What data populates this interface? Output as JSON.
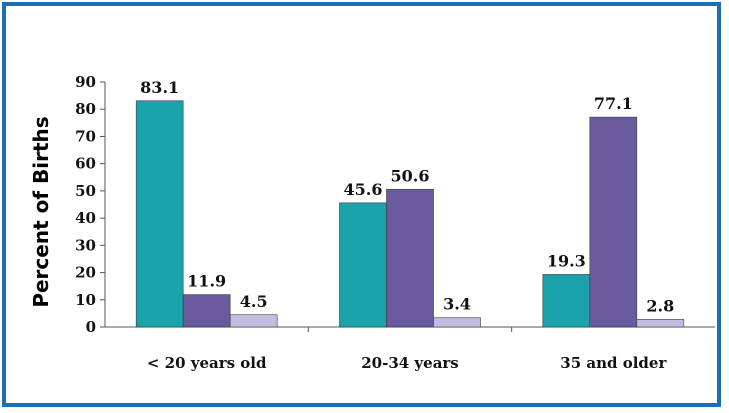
{
  "chart_data": {
    "type": "bar",
    "title": "",
    "xlabel": "",
    "ylabel": "Percent of Births",
    "categories": [
      "< 20 years old",
      "20-34 years",
      "35 and older"
    ],
    "series": [
      {
        "values": [
          83.1,
          45.6,
          19.3
        ],
        "color": "#1aa3aa"
      },
      {
        "values": [
          11.9,
          50.6,
          77.1
        ],
        "color": "#6a5a9e"
      },
      {
        "values": [
          4.5,
          3.4,
          2.8
        ],
        "color": "#c2bde0"
      }
    ],
    "ylim": [
      0,
      90
    ],
    "yticks": [
      0,
      10,
      20,
      30,
      40,
      50,
      60,
      70,
      80,
      90
    ],
    "data_labels": [
      [
        "83.1",
        "45.6",
        "19.3"
      ],
      [
        "11.9",
        "50.6",
        "77.1"
      ],
      [
        "4.5",
        "3.4",
        "2.8"
      ]
    ],
    "grid": false,
    "legend": "none"
  }
}
